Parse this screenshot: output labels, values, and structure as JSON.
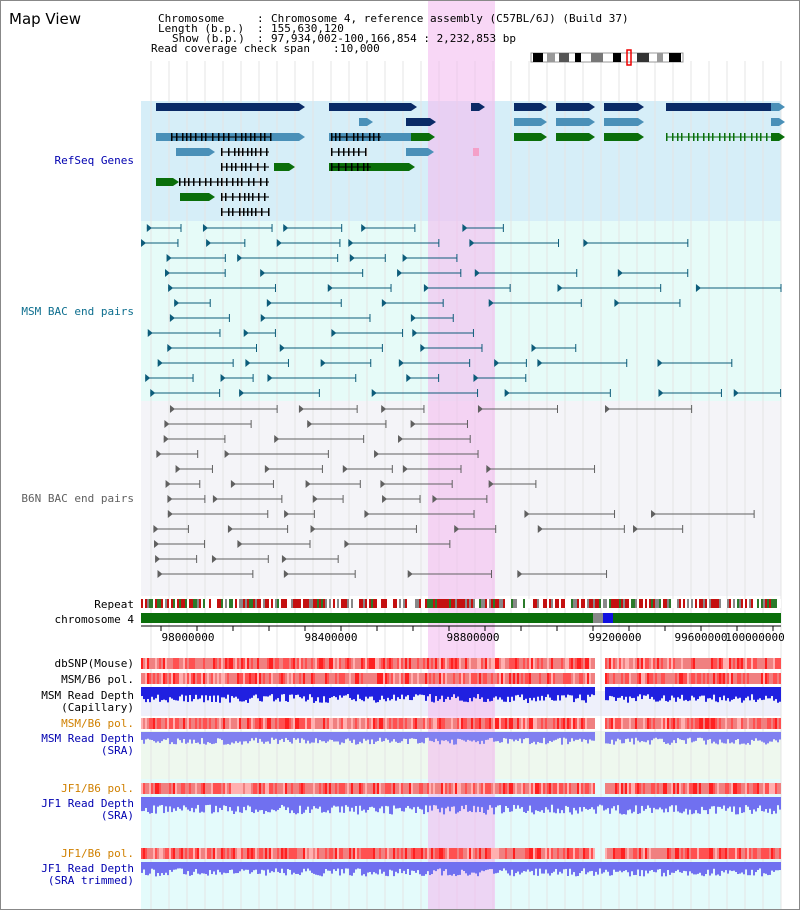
{
  "header": {
    "title": "Map View",
    "chromosome_label": "Chromosome",
    "chromosome_value": "Chromosome 4, reference assembly (C57BL/6J) (Build 37)",
    "length_label": "Length (b.p.)",
    "length_value": "155,630,120",
    "show_label": "Show (b.p.)",
    "show_value": "97,934,002-100,166,854 : 2,232,853 bp",
    "span_label": "Read coverage check span",
    "span_value": "10,000"
  },
  "tracks": {
    "refseq": "RefSeq Genes",
    "msm_bac": "MSM BAC end pairs",
    "b6n_bac": "B6N BAC end pairs",
    "repeat": "Repeat",
    "chromosome": "chromosome 4",
    "dbsnp": "dbSNP(Mouse)",
    "msm_b6_pol": "MSM/B6 pol.",
    "msm_depth_cap_1": "MSM Read Depth",
    "msm_depth_cap_2": "(Capillary)",
    "msm_b6_pol_sra": "MSM/B6 pol.",
    "msm_depth_sra_1": "MSM Read Depth",
    "msm_depth_sra_2": "(SRA)",
    "jf1_b6_pol": "JF1/B6 pol.",
    "jf1_depth_sra_1": "JF1 Read Depth",
    "jf1_depth_sra_2": "(SRA)",
    "jf1_b6_pol_trim": "JF1/B6 pol.",
    "jf1_depth_trim_1": "JF1 Read Depth",
    "jf1_depth_trim_2": "(SRA trimmed)"
  },
  "axis_ticks": [
    "98000000",
    "98400000",
    "98800000",
    "99200000",
    "99600000",
    "100000000"
  ],
  "colors": {
    "navy": "#0a2a66",
    "steel": "#4a90b8",
    "green": "#0a6e0a",
    "teal": "#0d5c7a",
    "gray": "#606060",
    "highlight": "#f4bdf0",
    "label_blue": "#0000b0",
    "label_teal": "#0d6e8e",
    "label_orange": "#d08000"
  }
}
